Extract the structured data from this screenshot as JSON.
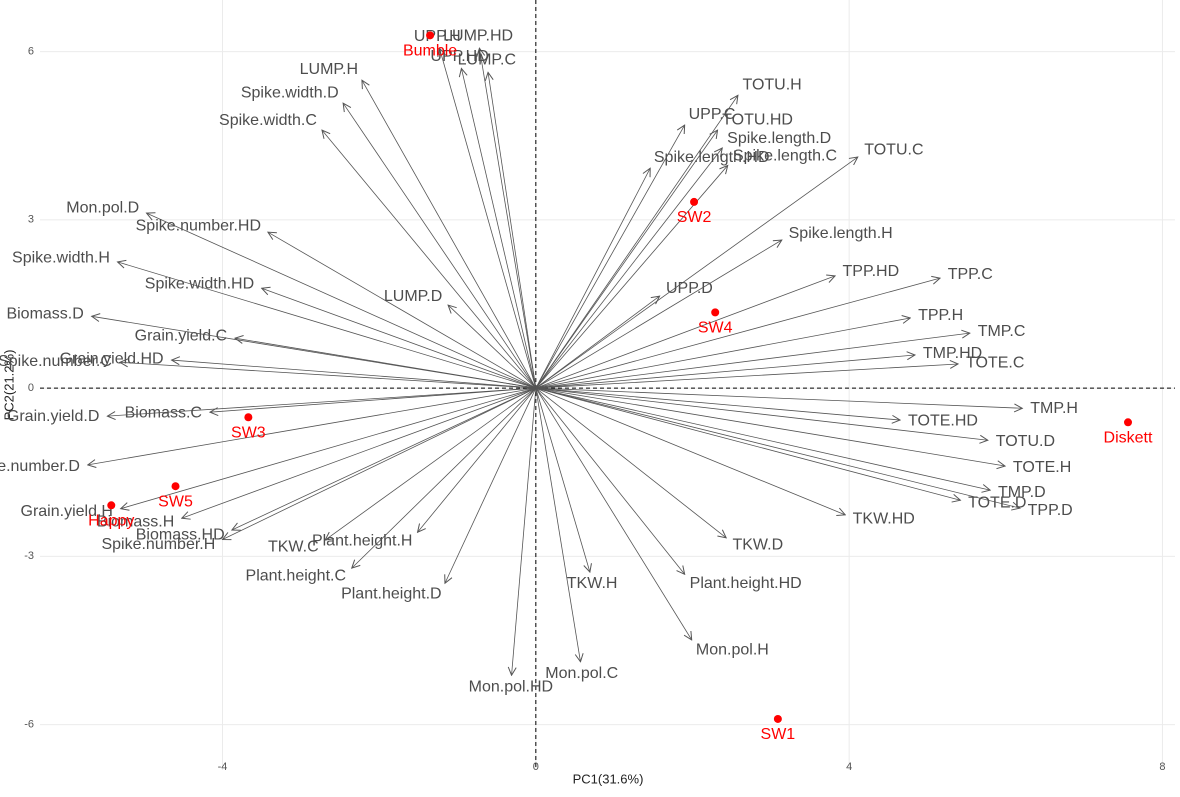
{
  "chart_data": {
    "type": "biplot",
    "x_label": "PC1(31.6%)",
    "y_label": "PC2(21.2%)",
    "xlim": [
      -6.33,
      8.16
    ],
    "ylim": [
      -6.81,
      6.92
    ],
    "xticks": [
      -4,
      0,
      4,
      8
    ],
    "yticks": [
      -6,
      -3,
      0,
      3,
      6
    ],
    "grid": true,
    "reference_lines": {
      "x": 0,
      "y": 0
    },
    "arrows": {
      "color": "#555555",
      "labels": [
        "UPP.H",
        "LUMP.HD",
        "UPP.HD",
        "LUMP.C",
        "LUMP.H",
        "Spike.width.D",
        "Spike.width.C",
        "Mon.pol.D",
        "Spike.number.HD",
        "Spike.width.HD",
        "Spike.width.H",
        "LUMP.D",
        "Grain.yield.C",
        "Biomass.D",
        "Grain.yield.HD",
        "Spike.number.C",
        "Biomass.C",
        "Grain.yield.D",
        "Spike.number.D",
        "Grain.yield.H",
        "Biomass.H",
        "Biomass.HD",
        "Spike.number.H",
        "TKW.C",
        "Plant.height.C",
        "Plant.height.H",
        "Plant.height.D",
        "Mon.pol.HD",
        "TKW.H",
        "Mon.pol.C",
        "Plant.height.HD",
        "Mon.pol.H",
        "TKW.D",
        "TKW.HD",
        "TMP.H",
        "TOTE.HD",
        "TOTU.D",
        "TOTE.H",
        "TMP.D",
        "TOTE.D",
        "TPP.D",
        "TOTE.C",
        "TMP.HD",
        "TMP.C",
        "TPP.H",
        "TPP.C",
        "TPP.HD",
        "UPP.D",
        "Spike.length.H",
        "Spike.length.C",
        "Spike.length.D",
        "Spike.length.HD",
        "UPP.C",
        "TOTU.HD",
        "TOTU.H",
        "TOTU.C"
      ],
      "x": [
        -1.23,
        -0.72,
        -0.95,
        -0.61,
        -2.22,
        -2.46,
        -2.73,
        -4.97,
        -3.42,
        -3.5,
        -5.34,
        -1.12,
        -3.84,
        -5.67,
        -4.65,
        -5.31,
        -4.16,
        -5.47,
        -5.72,
        -5.3,
        -4.52,
        -3.88,
        -4.0,
        -2.69,
        -2.35,
        -1.51,
        -1.16,
        -0.31,
        0.69,
        0.57,
        1.9,
        1.99,
        2.43,
        3.95,
        6.21,
        4.65,
        5.77,
        5.99,
        5.8,
        5.42,
        6.18,
        5.39,
        4.84,
        5.54,
        4.78,
        5.16,
        3.82,
        1.58,
        3.14,
        2.45,
        2.38,
        1.46,
        1.9,
        2.32,
        2.58,
        4.11
      ],
      "y": [
        6.06,
        6.06,
        5.7,
        5.63,
        5.49,
        5.08,
        4.6,
        3.12,
        2.78,
        1.78,
        2.25,
        1.48,
        0.89,
        1.28,
        0.5,
        0.46,
        -0.43,
        -0.5,
        -1.37,
        -2.15,
        -2.32,
        -2.53,
        -2.7,
        -2.71,
        -3.21,
        -2.57,
        -3.48,
        -5.12,
        -3.28,
        -4.88,
        -3.32,
        -4.49,
        -2.67,
        -2.26,
        -0.36,
        -0.57,
        -0.93,
        -1.39,
        -1.82,
        -2.0,
        -2.14,
        0.43,
        0.59,
        0.98,
        1.25,
        1.96,
        2.0,
        1.64,
        2.64,
        3.97,
        4.28,
        3.92,
        4.69,
        4.6,
        5.22,
        4.12
      ]
    },
    "points": {
      "color": "#ff0000",
      "labels": [
        "Bumble",
        "SW2",
        "SW4",
        "Diskett",
        "SW3",
        "SW5",
        "Happy",
        "SW1"
      ],
      "x": [
        -1.35,
        2.02,
        2.29,
        7.56,
        -3.67,
        -4.6,
        -5.42,
        3.09
      ],
      "y": [
        6.29,
        3.32,
        1.35,
        -0.61,
        -0.52,
        -1.75,
        -2.09,
        -5.9
      ]
    }
  }
}
